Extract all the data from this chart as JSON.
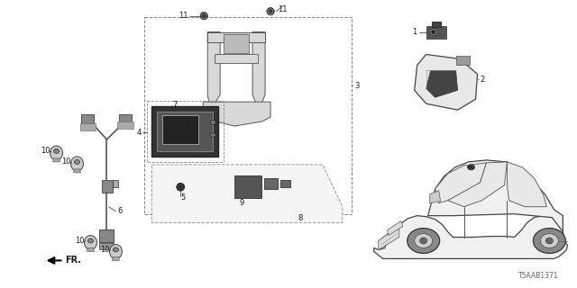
{
  "bg_color": "#ffffff",
  "fig_width": 6.4,
  "fig_height": 3.2,
  "dpi": 100,
  "diagram_id": "T5AAB1371",
  "line_color": "#2a2a2a",
  "text_color": "#1a1a1a",
  "label_fontsize": 6.0,
  "diagram_id_fontsize": 5.5,
  "line_width": 0.8
}
